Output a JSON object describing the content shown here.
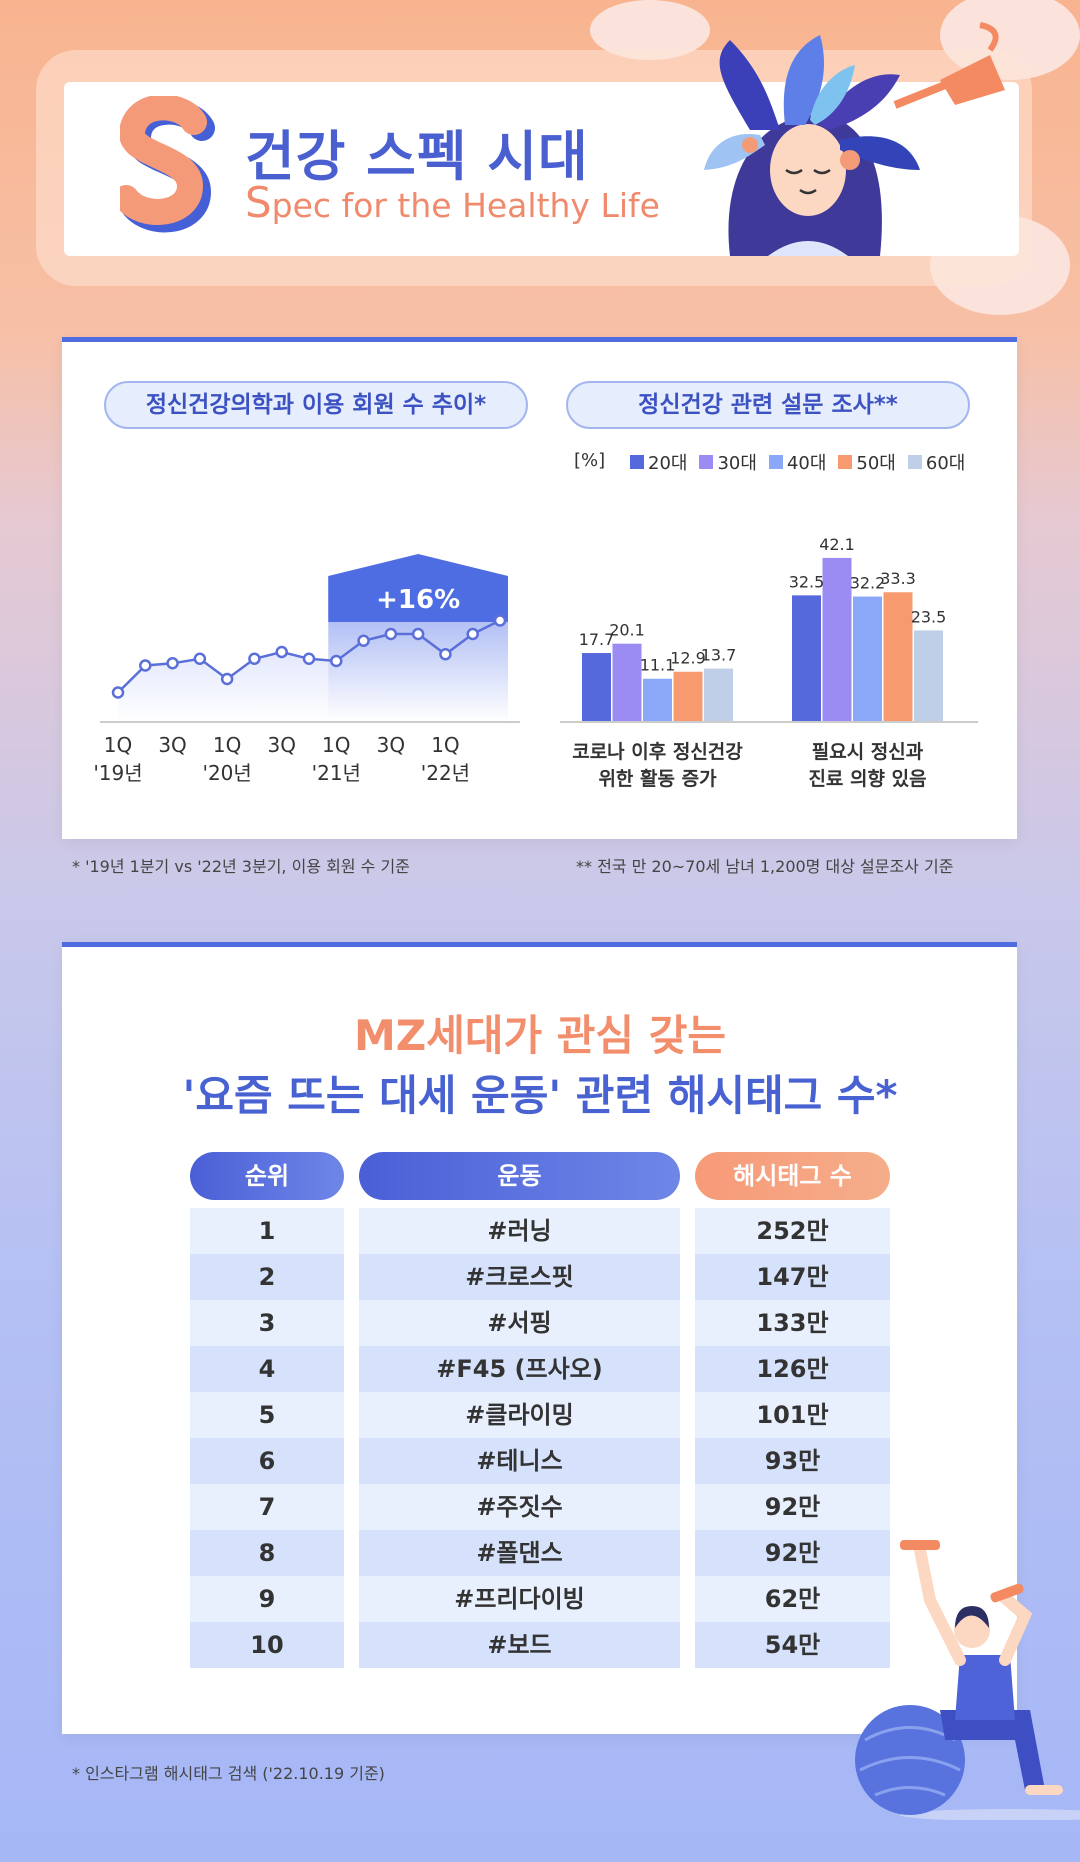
{
  "header": {
    "title": "건강 스펙 시대",
    "subtitle_cap": "S",
    "subtitle_rest": "pec for the Healthy Life"
  },
  "left_chart_title": "정신건강의학과 이용 회원 수 추이*",
  "right_chart_title": "정신건강 관련 설문 조사**",
  "right_unit": "[%]",
  "left_note": "* '19년 1분기 vs '22년 3분기, 이용 회원 수 기준",
  "right_note": "** 전국 만 20~70세 남녀 1,200명 대상 설문조사 기준",
  "table": {
    "title_line1": "MZ세대가 관심 갖는",
    "title_line2": "'요즘 뜨는 대세 운동' 관련 해시태그 수*",
    "headers": [
      "순위",
      "운동",
      "해시태그 수"
    ],
    "rows": [
      [
        "1",
        "#러닝",
        "252만"
      ],
      [
        "2",
        "#크로스핏",
        "147만"
      ],
      [
        "3",
        "#서핑",
        "133만"
      ],
      [
        "4",
        "#F45 (프사오)",
        "126만"
      ],
      [
        "5",
        "#클라이밍",
        "101만"
      ],
      [
        "6",
        "#테니스",
        "93만"
      ],
      [
        "7",
        "#주짓수",
        "92만"
      ],
      [
        "8",
        "#폴댄스",
        "92만"
      ],
      [
        "9",
        "#프리다이빙",
        "62만"
      ],
      [
        "10",
        "#보드",
        "54만"
      ]
    ],
    "footnote": "* 인스타그램 해시태그 검색 ('22.10.19 기준)"
  },
  "chart_data": [
    {
      "type": "line",
      "title": "정신건강의학과 이용 회원 수 추이*",
      "x": [
        "1Q '19",
        "2Q '19",
        "3Q '19",
        "4Q '19",
        "1Q '20",
        "2Q '20",
        "3Q '20",
        "4Q '20",
        "1Q '21",
        "2Q '21",
        "3Q '21",
        "4Q '21",
        "1Q '22",
        "2Q '22",
        "3Q '22"
      ],
      "x_tick_labels": [
        [
          "1Q",
          "'19년"
        ],
        [
          "3Q",
          ""
        ],
        [
          "1Q",
          "'20년"
        ],
        [
          "3Q",
          ""
        ],
        [
          "1Q",
          "'21년"
        ],
        [
          "3Q",
          ""
        ],
        [
          "1Q",
          "'22년"
        ]
      ],
      "y": [
        100,
        106,
        106.5,
        107.5,
        103,
        107.5,
        109,
        107.5,
        107,
        111.5,
        113,
        113,
        108.5,
        113,
        116
      ],
      "annotation": "+16%",
      "grid": false,
      "colors": {
        "line": "#5b6fd8",
        "fill_top": "#d9e0fb",
        "arrow": "#4f6de3"
      }
    },
    {
      "type": "bar",
      "title": "정신건강 관련 설문 조사**",
      "ylabel": "[%]",
      "categories": [
        [
          "코로나 이후 정신건강",
          "위한 활동 증가"
        ],
        [
          "필요시 정신과",
          "진료 의향 있음"
        ]
      ],
      "series": [
        {
          "name": "20대",
          "values": [
            17.7,
            32.5
          ],
          "color": "#5568dc"
        },
        {
          "name": "30대",
          "values": [
            20.1,
            42.1
          ],
          "color": "#9a8cf2"
        },
        {
          "name": "40대",
          "values": [
            11.1,
            32.2
          ],
          "color": "#8aa8f7"
        },
        {
          "name": "50대",
          "values": [
            12.9,
            33.3
          ],
          "color": "#f79a70"
        },
        {
          "name": "60대",
          "values": [
            13.7,
            23.5
          ],
          "color": "#bfcfe8"
        }
      ],
      "ylim": [
        0,
        45
      ],
      "legend": "top",
      "grid": false
    }
  ]
}
